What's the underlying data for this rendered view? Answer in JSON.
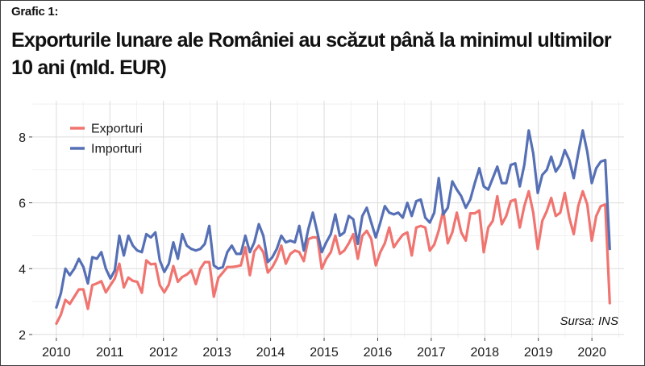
{
  "label": "Grafic 1:",
  "title": "Exporturile lunare ale României au scăzut până la minimul ultimilor 10 ani (mld. EUR)",
  "source": "Sursa: INS",
  "chart_data": {
    "type": "line",
    "title": "Exporturile lunare ale României au scăzut până la minimul ultimilor 10 ani (mld. EUR)",
    "xlabel": "",
    "ylabel": "",
    "x_start": "2010-01",
    "x_end": "2020-04",
    "x_ticks": [
      "2010",
      "2011",
      "2012",
      "2013",
      "2014",
      "2015",
      "2016",
      "2017",
      "2018",
      "2019",
      "2020"
    ],
    "y_ticks": [
      2,
      4,
      6,
      8
    ],
    "ylim": [
      1.9,
      9.1
    ],
    "grid": true,
    "legend_position": "top-left",
    "series": [
      {
        "name": "Exporturi",
        "color": "#f07470",
        "values": [
          2.33,
          2.6,
          3.05,
          2.93,
          3.15,
          3.37,
          3.37,
          2.78,
          3.5,
          3.55,
          3.62,
          3.28,
          3.5,
          3.7,
          4.15,
          3.43,
          3.73,
          3.63,
          3.6,
          3.27,
          4.25,
          4.13,
          4.15,
          3.5,
          3.28,
          3.52,
          4.08,
          3.6,
          3.75,
          3.82,
          3.95,
          3.53,
          4.0,
          4.2,
          4.2,
          3.15,
          3.72,
          3.88,
          4.05,
          4.05,
          4.07,
          4.1,
          4.65,
          3.8,
          4.52,
          4.7,
          4.5,
          3.88,
          4.05,
          4.3,
          4.7,
          4.15,
          4.45,
          4.55,
          4.5,
          4.23,
          4.9,
          4.95,
          4.95,
          4.0,
          4.3,
          4.5,
          5.0,
          4.45,
          4.55,
          4.77,
          5.05,
          4.3,
          5.0,
          5.15,
          4.9,
          4.1,
          4.5,
          4.77,
          5.25,
          4.65,
          4.85,
          5.03,
          5.1,
          4.4,
          5.25,
          5.3,
          5.25,
          4.55,
          4.73,
          5.16,
          5.77,
          4.77,
          5.1,
          5.7,
          5.1,
          4.85,
          5.68,
          5.68,
          5.77,
          4.5,
          5.25,
          5.45,
          6.2,
          5.35,
          5.6,
          6.05,
          6.1,
          5.25,
          5.9,
          6.35,
          5.7,
          4.6,
          5.45,
          5.75,
          6.15,
          5.6,
          5.7,
          6.3,
          5.55,
          5.05,
          5.9,
          6.35,
          5.95,
          4.85,
          5.6,
          5.9,
          5.95,
          2.95
        ]
      },
      {
        "name": "Importuri",
        "color": "#5670b6",
        "values": [
          2.82,
          3.25,
          4.0,
          3.8,
          4.0,
          4.3,
          4.05,
          3.55,
          4.35,
          4.3,
          4.5,
          4.0,
          3.7,
          3.95,
          5.0,
          4.4,
          5.0,
          4.7,
          4.55,
          4.5,
          5.05,
          4.95,
          5.1,
          4.25,
          3.9,
          4.15,
          4.8,
          4.3,
          5.05,
          4.7,
          4.6,
          4.55,
          4.6,
          4.75,
          5.3,
          4.1,
          4.0,
          4.05,
          4.5,
          4.7,
          4.45,
          4.45,
          5.0,
          4.5,
          4.8,
          5.35,
          5.0,
          4.2,
          4.35,
          4.6,
          5.0,
          4.8,
          4.85,
          4.8,
          5.3,
          4.55,
          5.2,
          5.7,
          5.1,
          4.5,
          4.8,
          5.05,
          5.65,
          5.0,
          5.1,
          5.6,
          5.5,
          4.75,
          5.6,
          5.85,
          5.4,
          4.95,
          5.4,
          5.9,
          5.7,
          5.65,
          5.7,
          5.55,
          6.0,
          5.6,
          6.05,
          6.1,
          5.55,
          5.4,
          5.7,
          6.75,
          5.65,
          5.85,
          6.65,
          6.4,
          6.2,
          5.85,
          6.1,
          6.6,
          7.05,
          6.5,
          6.4,
          6.75,
          7.1,
          6.6,
          6.6,
          7.15,
          7.2,
          6.5,
          7.15,
          8.2,
          7.5,
          6.3,
          6.85,
          7.0,
          7.4,
          6.95,
          7.15,
          7.6,
          7.3,
          6.75,
          7.5,
          8.2,
          7.55,
          6.6,
          7.05,
          7.25,
          7.3,
          4.6
        ]
      }
    ]
  }
}
